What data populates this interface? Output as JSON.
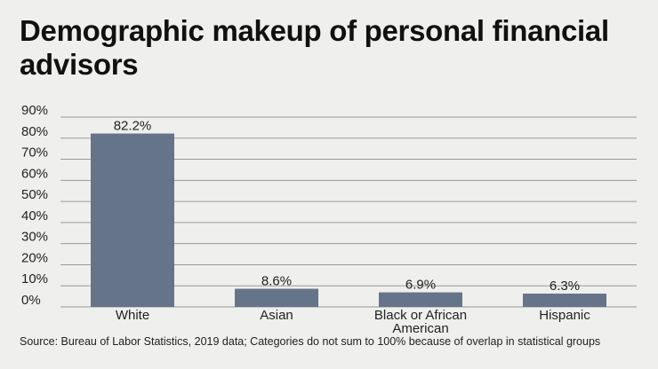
{
  "title": "Demographic makeup of personal financial advisors",
  "source": "Source: Bureau of Labor Statistics, 2019 data; Categories do not sum to 100% because of overlap in statistical groups",
  "colors": {
    "bar": "#66748a",
    "grid": "#9a9a9a",
    "background": "#efefed"
  },
  "chart_data": {
    "type": "bar",
    "categories": [
      "White",
      "Asian",
      "Black or African American",
      "Hispanic"
    ],
    "category_lines": [
      [
        "White"
      ],
      [
        "Asian"
      ],
      [
        "Black or African",
        "American"
      ],
      [
        "Hispanic"
      ]
    ],
    "values": [
      82.2,
      8.6,
      6.9,
      6.3
    ],
    "value_labels": [
      "82.2%",
      "8.6%",
      "6.9%",
      "6.3%"
    ],
    "ylim": [
      0,
      90
    ],
    "yticks": [
      0,
      10,
      20,
      30,
      40,
      50,
      60,
      70,
      80,
      90
    ],
    "ytick_labels": [
      "0%",
      "10%",
      "20%",
      "30%",
      "40%",
      "50%",
      "60%",
      "70%",
      "80%",
      "90%"
    ],
    "xlabel": "",
    "ylabel": "",
    "grid": true,
    "legend": "none"
  }
}
